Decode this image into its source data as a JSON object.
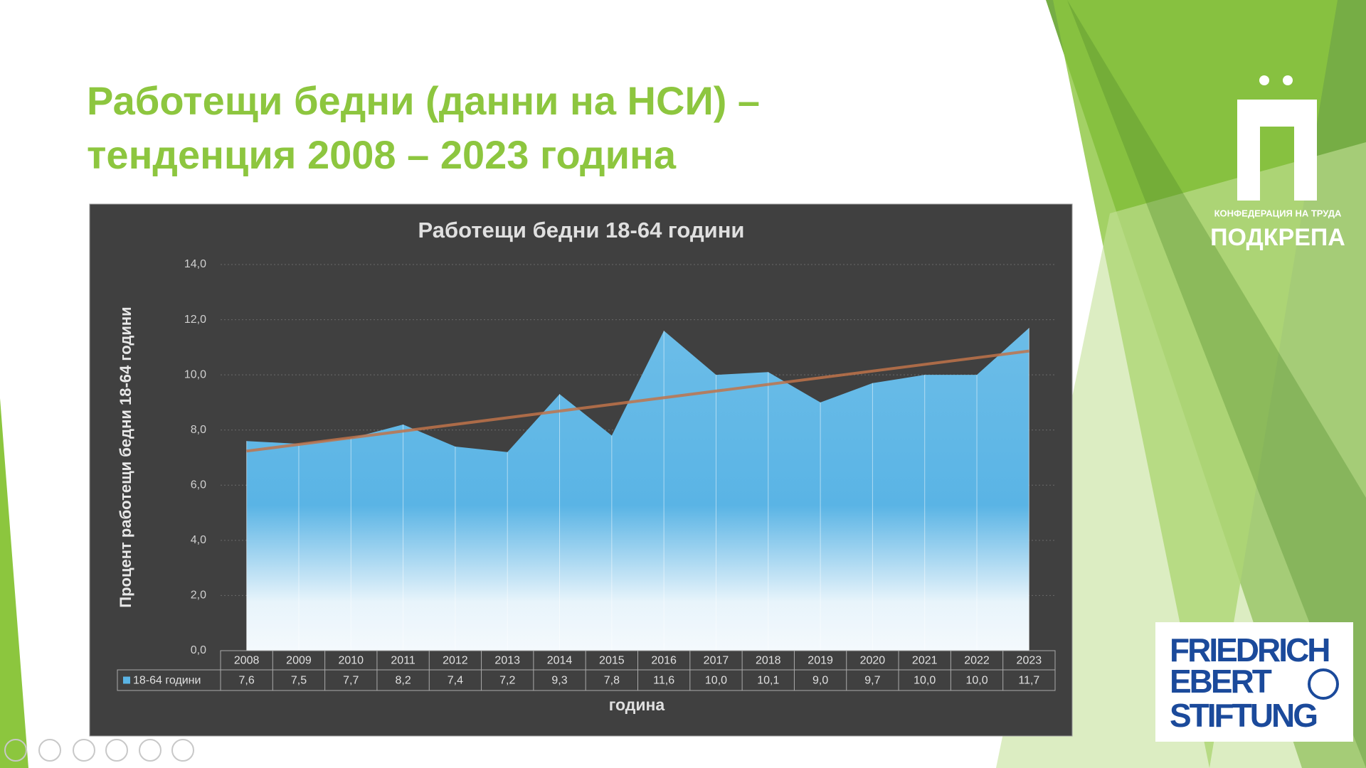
{
  "slide": {
    "title_lines": [
      "Работещи бедни (данни на НСИ) –",
      "тенденция 2008 – 2023 година"
    ]
  },
  "chart_data": {
    "type": "area",
    "title": "Работещи бедни 18-64 години",
    "x_label": "година",
    "y_label": "Процент работещи бедни 18-64 години",
    "categories": [
      "2008",
      "2009",
      "2010",
      "2011",
      "2012",
      "2013",
      "2014",
      "2015",
      "2016",
      "2017",
      "2018",
      "2019",
      "2020",
      "2021",
      "2022",
      "2023"
    ],
    "series": [
      {
        "name": "18-64 години",
        "color": "#5ab4e5",
        "values": [
          7.6,
          7.5,
          7.7,
          8.2,
          7.4,
          7.2,
          9.3,
          7.8,
          11.6,
          10.0,
          10.1,
          9.0,
          9.7,
          10.0,
          10.0,
          11.7
        ],
        "value_labels": [
          "7,6",
          "7,5",
          "7,7",
          "8,2",
          "7,4",
          "7,2",
          "9,3",
          "7,8",
          "11,6",
          "10,0",
          "10,1",
          "9,0",
          "9,7",
          "10,0",
          "10,0",
          "11,7"
        ]
      }
    ],
    "ylim": [
      0,
      14
    ],
    "yticks": [
      {
        "value": 0,
        "label": "0,0"
      },
      {
        "value": 2,
        "label": "2,0"
      },
      {
        "value": 4,
        "label": "4,0"
      },
      {
        "value": 6,
        "label": "6,0"
      },
      {
        "value": 8,
        "label": "8,0"
      },
      {
        "value": 10,
        "label": "10,0"
      },
      {
        "value": 12,
        "label": "12,0"
      },
      {
        "value": 14,
        "label": "14,0"
      }
    ],
    "grid": true,
    "trendline": {
      "color": "#c0734a"
    },
    "data_table": true
  },
  "logos": {
    "podkrepa": {
      "subtitle": "КОНФЕДЕРАЦИЯ НА ТРУДА",
      "name": "ПОДКРЕПА"
    },
    "fes": {
      "lines": [
        "FRIEDRICH",
        "EBERT",
        "STIFTUNG"
      ]
    }
  }
}
